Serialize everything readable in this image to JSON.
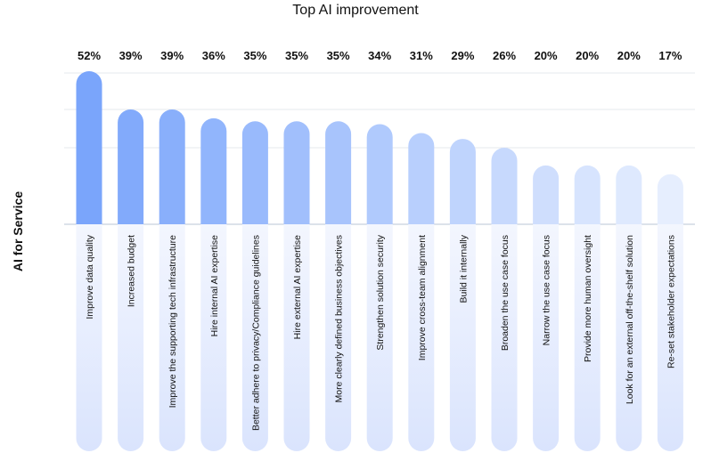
{
  "chart_data": {
    "type": "bar",
    "title": "Top AI improvement",
    "ylabel": "AI for Service",
    "xlabel": "",
    "ylim": [
      0,
      60
    ],
    "grid": true,
    "categories": [
      "Improve data quality",
      "Increased budget",
      "Improve the supporting tech infrastructure",
      "Hire internal AI expertise",
      "Better adhere to privacy/Compliance guidelines",
      "Hire external AI expertise",
      "More clearly defined business objectives",
      "Strengthen solution security",
      "Improve cross-team alignment",
      "Build it internally",
      "Broaden the use case focus",
      "Narrow the use case focus",
      "Provide more human oversight",
      "Look for an external off-the-shelf solution",
      "Re-set stakeholder expectations"
    ],
    "values": [
      52,
      39,
      39,
      36,
      35,
      35,
      35,
      34,
      31,
      29,
      26,
      20,
      20,
      20,
      17
    ],
    "value_labels": [
      "52%",
      "39%",
      "39%",
      "36%",
      "35%",
      "35%",
      "35%",
      "34%",
      "31%",
      "29%",
      "26%",
      "20%",
      "20%",
      "20%",
      "17%"
    ],
    "colors": {
      "bar_dark": "#7aa5fb",
      "bar_light": "#e6eefe",
      "grid": "#e6e8ee",
      "baseline": "#b9c4d6"
    }
  }
}
